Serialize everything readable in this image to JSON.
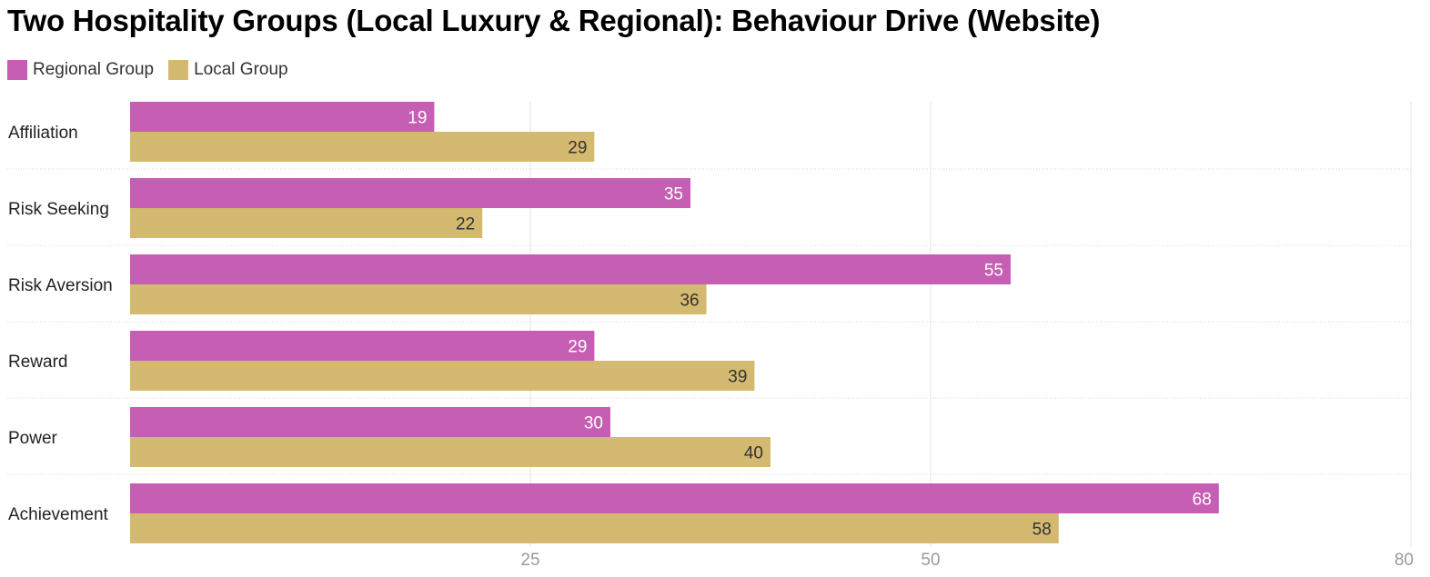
{
  "chart_data": {
    "type": "bar",
    "orientation": "horizontal",
    "title": "Two Hospitality Groups (Local Luxury & Regional): Behaviour Drive (Website)",
    "categories": [
      "Affiliation",
      "Risk Seeking",
      "Risk Aversion",
      "Reward",
      "Power",
      "Achievement"
    ],
    "series": [
      {
        "name": "Regional Group",
        "color": "#c65eb3",
        "label_color": "#ffffff",
        "values": [
          19,
          35,
          55,
          29,
          30,
          68
        ]
      },
      {
        "name": "Local Group",
        "color": "#d4b970",
        "label_color": "#333333",
        "values": [
          29,
          22,
          36,
          39,
          40,
          58
        ]
      }
    ],
    "xlim": [
      0,
      80
    ],
    "xticks": [
      "25",
      "50",
      "80"
    ],
    "xtick_values": [
      25,
      50,
      80
    ],
    "grid": true,
    "legend_position": "top-left",
    "data_labels": true
  }
}
